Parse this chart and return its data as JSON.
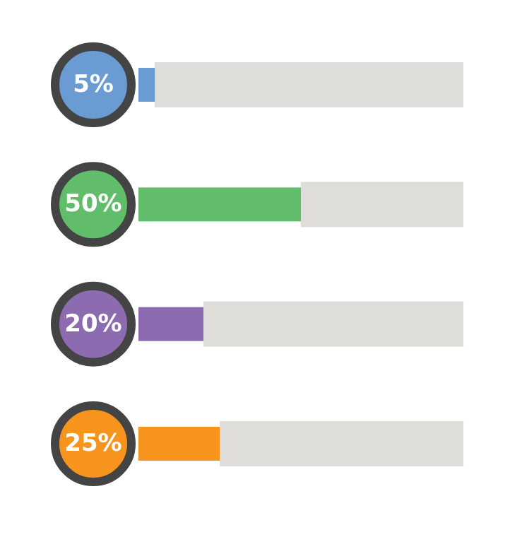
{
  "chart_data": {
    "type": "bar",
    "orientation": "horizontal",
    "stacked": true,
    "categories": [
      null,
      null,
      null,
      null
    ],
    "xlim": [
      0,
      100
    ],
    "series": [
      {
        "colors": [
          "#6a9bd3",
          "#62bd6b",
          "#8c6bb1",
          "#f7941d"
        ],
        "values": [
          5,
          50,
          20,
          25
        ],
        "value_labels": [
          "5%",
          "50%",
          "20%",
          "25%"
        ]
      },
      {
        "color": "#deddda",
        "values": [
          95,
          50,
          80,
          75
        ]
      }
    ]
  }
}
